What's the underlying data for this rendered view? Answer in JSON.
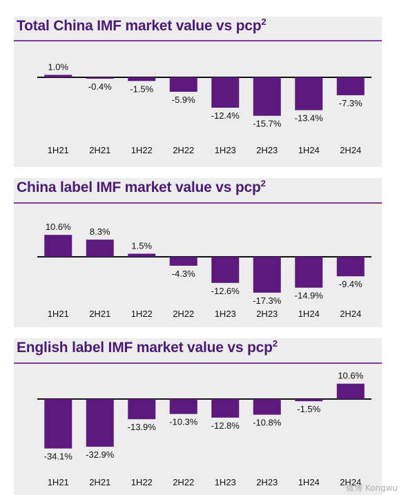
{
  "chart_data": [
    {
      "type": "bar",
      "title": "Total China IMF market value vs pcp",
      "title_superscript": "2",
      "categories": [
        "1H21",
        "2H21",
        "1H22",
        "2H22",
        "1H23",
        "2H23",
        "1H24",
        "2H24"
      ],
      "values": [
        1.0,
        -0.4,
        -1.5,
        -5.9,
        -12.4,
        -15.7,
        -13.4,
        -7.3
      ],
      "labels": [
        "1.0%",
        "-0.4%",
        "-1.5%",
        "-5.9%",
        "-12.4%",
        "-15.7%",
        "-13.4%",
        "-7.3%"
      ],
      "bar_color": "#5c1a7e",
      "grid": false,
      "legend": "none"
    },
    {
      "type": "bar",
      "title": "China label IMF market value vs pcp",
      "title_superscript": "2",
      "categories": [
        "1H21",
        "2H21",
        "1H22",
        "2H22",
        "1H23",
        "2H23",
        "1H24",
        "2H24"
      ],
      "values": [
        10.6,
        8.3,
        1.5,
        -4.3,
        -12.6,
        -17.3,
        -14.9,
        -9.4
      ],
      "labels": [
        "10.6%",
        "8.3%",
        "1.5%",
        "-4.3%",
        "-12.6%",
        "-17.3%",
        "-14.9%",
        "-9.4%"
      ],
      "bar_color": "#5c1a7e",
      "grid": false,
      "legend": "none"
    },
    {
      "type": "bar",
      "title": "English label IMF market value vs pcp",
      "title_superscript": "2",
      "categories": [
        "1H21",
        "2H21",
        "1H22",
        "2H22",
        "1H23",
        "2H23",
        "1H24",
        "2H24"
      ],
      "values": [
        -34.1,
        -32.9,
        -13.9,
        -10.3,
        -12.8,
        -10.8,
        -1.5,
        10.6
      ],
      "labels": [
        "-34.1%",
        "-32.9%",
        "-13.9%",
        "-10.3%",
        "-12.8%",
        "-10.8%",
        "-1.5%",
        "10.6%"
      ],
      "bar_color": "#5c1a7e",
      "grid": false,
      "legend": "none"
    }
  ],
  "watermark": "微博 Kongwu",
  "colors": {
    "title": "#4b1a73",
    "rule": "#7a3b93",
    "bar": "#5c1a7e",
    "panel_bg": "#ededed"
  }
}
